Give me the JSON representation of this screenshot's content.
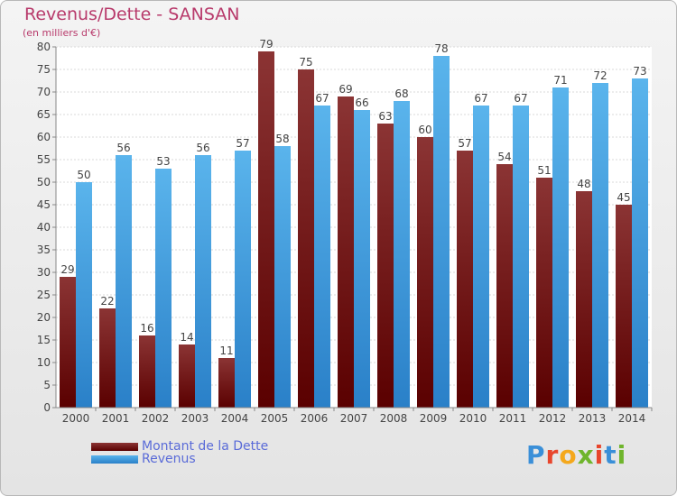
{
  "title": "Revenus/Dette - SANSAN",
  "subtitle": "(en milliers d'€)",
  "colors": {
    "dette_top": "#8b3434",
    "dette_bottom": "#5a0000",
    "revenus_top": "#5ab4ec",
    "revenus_bottom": "#2a80c8",
    "title": "#b83a6b",
    "legend_text": "#5a6bd8"
  },
  "logo": {
    "text": "Proxiti"
  },
  "chart_data": {
    "type": "bar",
    "categories": [
      "2000",
      "2001",
      "2002",
      "2003",
      "2004",
      "2005",
      "2006",
      "2007",
      "2008",
      "2009",
      "2010",
      "2011",
      "2012",
      "2013",
      "2014"
    ],
    "series": [
      {
        "name": "Montant de la Dette",
        "values": [
          29,
          22,
          16,
          14,
          11,
          79,
          75,
          69,
          63,
          60,
          57,
          54,
          51,
          48,
          45
        ]
      },
      {
        "name": "Revenus",
        "values": [
          50,
          56,
          53,
          56,
          57,
          58,
          67,
          66,
          68,
          78,
          67,
          67,
          71,
          72,
          73
        ]
      }
    ],
    "ylim": [
      0,
      80
    ],
    "yticks": [
      0,
      5,
      10,
      15,
      20,
      25,
      30,
      35,
      40,
      45,
      50,
      55,
      60,
      65,
      70,
      75,
      80
    ],
    "grid": true,
    "legend": "bottom-left"
  }
}
